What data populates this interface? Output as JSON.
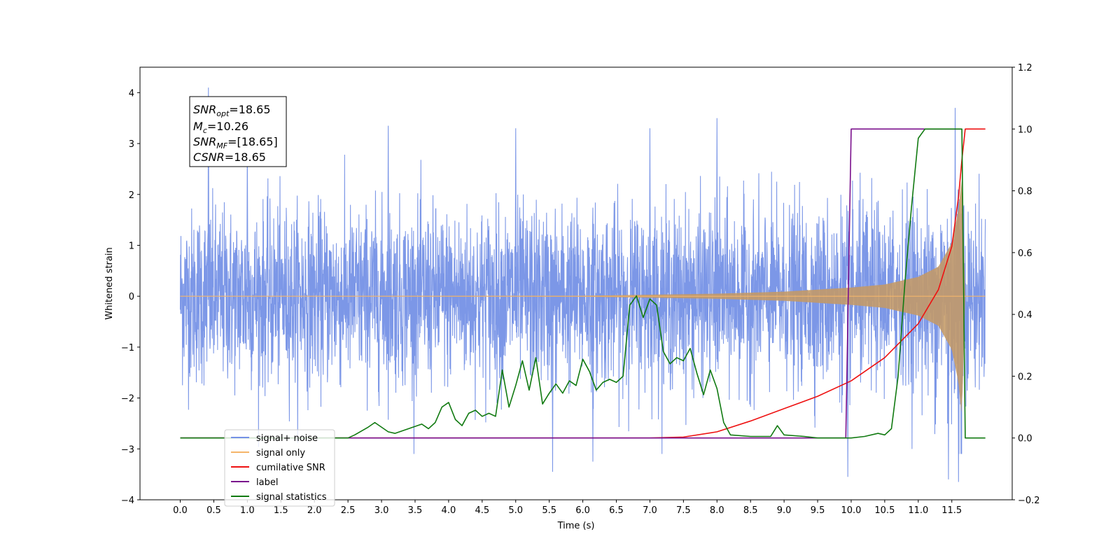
{
  "chart_data": {
    "type": "line",
    "xlabel": "Time (s)",
    "ylabel": "Whitened strain",
    "xlim": [
      -0.6,
      12.4
    ],
    "ylim": [
      -4.0,
      4.5
    ],
    "y2lim": [
      -0.2,
      1.2
    ],
    "x_ticks": [
      0.0,
      0.5,
      1.0,
      1.5,
      2.0,
      2.5,
      3.0,
      3.5,
      4.0,
      4.5,
      5.0,
      5.5,
      6.0,
      6.5,
      7.0,
      7.5,
      8.0,
      8.5,
      9.0,
      9.5,
      10.0,
      10.5,
      11.0,
      11.5
    ],
    "x_tick_labels": [
      "0.0",
      "0.5",
      "1.0",
      "1.5",
      "2.0",
      "2.5",
      "3.0",
      "3.5",
      "4.0",
      "4.5",
      "5.0",
      "5.5",
      "6.0",
      "6.5",
      "7.0",
      "7.5",
      "8.0",
      "8.5",
      "9.0",
      "9.5",
      "10.0",
      "10.5",
      "11.0",
      "11.5"
    ],
    "y_ticks": [
      -4,
      -3,
      -2,
      -1,
      0,
      1,
      2,
      3,
      4
    ],
    "y_tick_labels": [
      "−4",
      "−3",
      "−2",
      "−1",
      "0",
      "1",
      "2",
      "3",
      "4"
    ],
    "y2_ticks": [
      -0.2,
      0.0,
      0.2,
      0.4,
      0.6,
      0.8,
      1.0,
      1.2
    ],
    "y2_tick_labels": [
      "−0.2",
      "0.0",
      "0.2",
      "0.4",
      "0.6",
      "0.8",
      "1.0",
      "1.2"
    ],
    "grid": false,
    "legend_position": "lower-left",
    "annotation": {
      "lines": [
        {
          "base": "SNR",
          "sub": "opt",
          "value": "=18.65"
        },
        {
          "base": "M",
          "sub": "c",
          "value": "=10.26"
        },
        {
          "base": "SNR",
          "sub": "MF",
          "value": "=[18.65]"
        },
        {
          "base": "CSNR",
          "sub": "",
          "value": "=18.65"
        }
      ]
    },
    "series": [
      {
        "name": "signal+ noise",
        "color": "#7591e6",
        "axis": "left",
        "style": "noise band",
        "x_range": [
          0.0,
          12.0
        ],
        "std": 0.85,
        "spikes": [
          {
            "x": 0.42,
            "y": 4.1
          },
          {
            "x": 1.0,
            "y": 3.0
          },
          {
            "x": 3.1,
            "y": 3.35
          },
          {
            "x": 5.0,
            "y": 3.3
          },
          {
            "x": 7.0,
            "y": 3.3
          },
          {
            "x": 8.0,
            "y": 3.5
          },
          {
            "x": 11.55,
            "y": 3.7
          },
          {
            "x": 5.55,
            "y": -3.45
          },
          {
            "x": 9.95,
            "y": -3.55
          },
          {
            "x": 11.45,
            "y": -3.6
          },
          {
            "x": 11.6,
            "y": -3.65
          },
          {
            "x": 6.15,
            "y": -3.25
          }
        ]
      },
      {
        "name": "signal only",
        "color": "#f5b56a",
        "axis": "left",
        "style": "chirp envelope",
        "x": [
          0.0,
          6.0,
          8.0,
          9.0,
          10.0,
          10.5,
          11.0,
          11.3,
          11.5,
          11.6,
          11.65,
          11.7
        ],
        "envelope": [
          0.0,
          0.01,
          0.05,
          0.09,
          0.17,
          0.23,
          0.38,
          0.58,
          1.05,
          1.7,
          2.4,
          0.0
        ]
      },
      {
        "name": "cumilative SNR",
        "color": "#ee1111",
        "axis": "right",
        "x": [
          0.0,
          7.0,
          7.5,
          8.0,
          8.5,
          9.0,
          9.5,
          10.0,
          10.5,
          11.0,
          11.3,
          11.5,
          11.6,
          11.65,
          11.7,
          12.0
        ],
        "values": [
          0.0,
          0.0,
          0.003,
          0.02,
          0.055,
          0.095,
          0.135,
          0.185,
          0.26,
          0.37,
          0.48,
          0.62,
          0.78,
          0.9,
          1.0,
          1.0
        ]
      },
      {
        "name": "label",
        "color": "#7a0f8c",
        "axis": "right",
        "x": [
          0.0,
          9.92,
          10.0,
          11.65,
          11.65
        ],
        "values": [
          0.0,
          0.0,
          1.0,
          1.0,
          1.0
        ]
      },
      {
        "name": "signal statistics",
        "color": "#117a11",
        "axis": "right",
        "x": [
          0.0,
          2.5,
          2.6,
          2.8,
          2.9,
          3.0,
          3.1,
          3.2,
          3.4,
          3.6,
          3.7,
          3.8,
          3.9,
          4.0,
          4.1,
          4.2,
          4.3,
          4.4,
          4.5,
          4.6,
          4.7,
          4.8,
          4.9,
          5.0,
          5.1,
          5.2,
          5.3,
          5.4,
          5.5,
          5.6,
          5.7,
          5.8,
          5.9,
          6.0,
          6.1,
          6.2,
          6.3,
          6.4,
          6.5,
          6.6,
          6.7,
          6.8,
          6.9,
          7.0,
          7.1,
          7.2,
          7.3,
          7.4,
          7.5,
          7.6,
          7.7,
          7.8,
          7.9,
          8.0,
          8.1,
          8.2,
          8.5,
          8.8,
          8.9,
          9.0,
          9.3,
          9.5,
          10.0,
          10.2,
          10.4,
          10.5,
          10.6,
          10.7,
          10.8,
          10.9,
          11.0,
          11.1,
          11.3,
          11.5,
          11.65,
          11.7,
          12.0
        ],
        "values": [
          0.0,
          0.0,
          0.01,
          0.035,
          0.05,
          0.035,
          0.02,
          0.015,
          0.03,
          0.045,
          0.03,
          0.05,
          0.1,
          0.115,
          0.06,
          0.04,
          0.08,
          0.09,
          0.07,
          0.08,
          0.07,
          0.22,
          0.1,
          0.17,
          0.25,
          0.155,
          0.26,
          0.11,
          0.145,
          0.175,
          0.145,
          0.185,
          0.17,
          0.255,
          0.215,
          0.155,
          0.18,
          0.19,
          0.18,
          0.2,
          0.43,
          0.46,
          0.39,
          0.45,
          0.43,
          0.28,
          0.24,
          0.26,
          0.25,
          0.29,
          0.21,
          0.14,
          0.22,
          0.16,
          0.05,
          0.01,
          0.005,
          0.005,
          0.04,
          0.01,
          0.005,
          0.0,
          0.0,
          0.005,
          0.015,
          0.01,
          0.03,
          0.2,
          0.5,
          0.75,
          0.97,
          1.0,
          1.0,
          1.0,
          1.0,
          0.0,
          0.0
        ]
      }
    ]
  }
}
